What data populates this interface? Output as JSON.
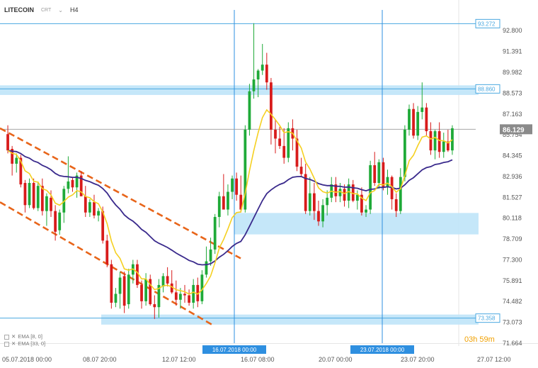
{
  "header": {
    "symbol": "LITECOIN",
    "type": "CRT",
    "timeframe": "H4"
  },
  "legend": [
    {
      "label": "EMA [8, 0]"
    },
    {
      "label": "EMA [33, 0]"
    }
  ],
  "timer": {
    "hours": "03h",
    "minutes": "59m"
  },
  "colors": {
    "up": "#1faa38",
    "down": "#d81b1b",
    "ema_fast": "#f5d021",
    "ema_slow": "#3a2a8c",
    "channel": "#e8651a",
    "zone": "#bfe4f8",
    "zone_line": "#4aa8e0",
    "vline": "#2e8fe0",
    "current_tag": "#8a8a8a",
    "axis_text": "#555555"
  },
  "chart_data": {
    "type": "candlestick",
    "symbol": "LITECOIN",
    "timeframe": "H4",
    "ylim": [
      71.664,
      94.2
    ],
    "y_ticks": [
      "92.800",
      "91.391",
      "89.982",
      "88.573",
      "87.163",
      "85.754",
      "84.345",
      "82.936",
      "81.527",
      "80.118",
      "78.709",
      "77.300",
      "75.891",
      "74.482",
      "73.073",
      "71.664"
    ],
    "x_ticks": [
      "05.07.2018 00:00",
      "08.07 20:00",
      "12.07 12:00",
      "16.07 08:00",
      "20.07 00:00",
      "23.07 20:00",
      "27.07 12:00"
    ],
    "horizontal_levels": [
      {
        "label": "93.272",
        "value": 93.272
      },
      {
        "label": "88.860",
        "value": 88.86
      },
      {
        "label": "73.358",
        "value": 73.358
      }
    ],
    "current_price": {
      "label": "86.129",
      "value": 86.129
    },
    "zones": [
      {
        "from": 88.45,
        "to": 89.1
      },
      {
        "from": 79.02,
        "to": 80.47
      },
      {
        "from": 72.92,
        "to": 73.6
      }
    ],
    "vertical_markers": [
      {
        "label": "16.07.2018 00:00"
      },
      {
        "label": "23.07.2018 00:00"
      }
    ],
    "channel_top": [
      [
        0,
        86.2
      ],
      [
        82,
        77.4
      ]
    ],
    "channel_bottom": [
      [
        0,
        81.2
      ],
      [
        73,
        72.9
      ]
    ],
    "candles": [
      [
        85.8,
        86.4,
        84.5,
        84.7
      ],
      [
        84.8,
        85.0,
        83.0,
        83.8
      ],
      [
        83.8,
        84.5,
        83.2,
        84.2
      ],
      [
        84.2,
        84.4,
        82.2,
        82.4
      ],
      [
        82.5,
        82.7,
        80.5,
        81.0
      ],
      [
        81.0,
        82.8,
        80.8,
        82.5
      ],
      [
        82.5,
        82.8,
        80.7,
        80.8
      ],
      [
        80.8,
        82.6,
        80.6,
        82.3
      ],
      [
        82.3,
        82.8,
        80.3,
        80.6
      ],
      [
        80.6,
        81.8,
        79.6,
        81.6
      ],
      [
        81.5,
        82.0,
        80.2,
        80.6
      ],
      [
        80.6,
        81.0,
        78.6,
        79.2
      ],
      [
        79.3,
        80.7,
        79.0,
        80.5
      ],
      [
        80.5,
        82.3,
        79.8,
        82.1
      ],
      [
        82.1,
        84.3,
        81.8,
        82.6
      ],
      [
        82.7,
        82.9,
        81.9,
        82.2
      ],
      [
        82.2,
        83.2,
        81.5,
        83.0
      ],
      [
        83.0,
        83.3,
        81.6,
        81.6
      ],
      [
        81.6,
        82.3,
        80.2,
        80.5
      ],
      [
        80.5,
        81.4,
        80.2,
        81.2
      ],
      [
        81.2,
        81.7,
        80.1,
        80.3
      ],
      [
        80.3,
        80.8,
        79.9,
        80.6
      ],
      [
        80.6,
        80.9,
        78.4,
        78.6
      ],
      [
        78.6,
        79.0,
        76.8,
        77.0
      ],
      [
        77.0,
        77.3,
        74.0,
        74.4
      ],
      [
        74.4,
        75.4,
        74.1,
        75.0
      ],
      [
        75.0,
        76.5,
        74.0,
        76.1
      ],
      [
        76.2,
        76.5,
        73.7,
        74.2
      ],
      [
        74.3,
        76.7,
        74.0,
        76.3
      ],
      [
        76.3,
        77.3,
        75.7,
        77.0
      ],
      [
        77.0,
        77.3,
        75.4,
        75.6
      ],
      [
        75.6,
        75.9,
        74.0,
        74.5
      ],
      [
        74.5,
        76.4,
        74.2,
        76.0
      ],
      [
        76.0,
        76.3,
        74.2,
        74.3
      ],
      [
        74.3,
        74.9,
        73.3,
        74.1
      ],
      [
        74.1,
        76.0,
        73.4,
        75.6
      ],
      [
        75.5,
        76.4,
        75.1,
        76.2
      ],
      [
        76.2,
        76.8,
        75.5,
        75.7
      ],
      [
        75.7,
        76.6,
        75.0,
        75.1
      ],
      [
        75.1,
        75.9,
        74.2,
        74.6
      ],
      [
        74.6,
        75.4,
        74.0,
        75.0
      ],
      [
        75.0,
        75.6,
        74.4,
        74.9
      ],
      [
        74.9,
        75.3,
        74.2,
        74.4
      ],
      [
        74.4,
        76.0,
        74.0,
        75.6
      ],
      [
        75.6,
        76.1,
        74.1,
        74.5
      ],
      [
        74.5,
        76.6,
        74.3,
        76.3
      ],
      [
        76.3,
        78.2,
        76.1,
        77.2
      ],
      [
        77.2,
        78.8,
        76.9,
        78.0
      ],
      [
        78.0,
        80.4,
        77.7,
        80.2
      ],
      [
        80.2,
        81.9,
        79.5,
        81.6
      ],
      [
        81.6,
        83.1,
        80.9,
        80.7
      ],
      [
        80.7,
        82.4,
        80.3,
        81.9
      ],
      [
        81.9,
        83.0,
        81.4,
        82.8
      ],
      [
        82.8,
        83.2,
        81.3,
        81.7
      ],
      [
        81.7,
        83.0,
        80.5,
        80.7
      ],
      [
        80.7,
        86.4,
        80.5,
        86.1
      ],
      [
        86.1,
        89.2,
        85.7,
        88.7
      ],
      [
        88.7,
        93.3,
        88.2,
        89.5
      ],
      [
        89.5,
        90.2,
        88.3,
        90.1
      ],
      [
        90.1,
        91.9,
        89.8,
        90.5
      ],
      [
        90.5,
        91.3,
        88.8,
        89.3
      ],
      [
        89.3,
        89.6,
        85.1,
        86.1
      ],
      [
        86.1,
        86.8,
        84.5,
        85.5
      ],
      [
        85.5,
        86.3,
        84.8,
        85.0
      ],
      [
        85.0,
        86.2,
        83.8,
        84.2
      ],
      [
        84.2,
        86.6,
        83.9,
        86.2
      ],
      [
        86.2,
        86.8,
        84.7,
        85.5
      ],
      [
        85.5,
        86.1,
        83.3,
        83.6
      ],
      [
        83.6,
        84.2,
        82.9,
        83.1
      ],
      [
        83.1,
        83.8,
        80.4,
        80.6
      ],
      [
        80.6,
        82.9,
        80.3,
        81.8
      ],
      [
        81.8,
        82.5,
        80.0,
        80.6
      ],
      [
        80.6,
        81.3,
        79.6,
        79.9
      ],
      [
        79.9,
        81.4,
        79.5,
        81.0
      ],
      [
        81.0,
        82.0,
        80.3,
        81.5
      ],
      [
        81.5,
        82.9,
        81.2,
        82.4
      ],
      [
        82.4,
        82.9,
        81.2,
        81.6
      ],
      [
        81.6,
        82.5,
        81.2,
        82.1
      ],
      [
        82.1,
        82.4,
        80.9,
        81.3
      ],
      [
        81.3,
        82.8,
        80.8,
        82.4
      ],
      [
        82.4,
        82.7,
        81.2,
        81.3
      ],
      [
        81.3,
        82.0,
        80.7,
        81.7
      ],
      [
        81.7,
        82.2,
        80.3,
        80.5
      ],
      [
        80.5,
        81.0,
        80.2,
        80.7
      ],
      [
        80.7,
        84.0,
        80.4,
        83.7
      ],
      [
        83.7,
        84.6,
        82.3,
        82.5
      ],
      [
        82.5,
        84.1,
        82.1,
        83.9
      ],
      [
        83.9,
        84.2,
        82.0,
        82.2
      ],
      [
        82.2,
        83.4,
        81.7,
        82.9
      ],
      [
        82.9,
        83.0,
        80.7,
        81.4
      ],
      [
        81.4,
        81.8,
        80.2,
        80.6
      ],
      [
        80.6,
        83.5,
        80.4,
        82.9
      ],
      [
        82.9,
        86.4,
        82.6,
        86.1
      ],
      [
        86.1,
        87.8,
        85.7,
        87.5
      ],
      [
        87.5,
        87.9,
        85.5,
        85.7
      ],
      [
        85.7,
        87.7,
        85.4,
        87.3
      ],
      [
        87.3,
        89.3,
        86.8,
        87.6
      ],
      [
        87.6,
        87.9,
        85.7,
        86.0
      ],
      [
        86.0,
        86.6,
        84.4,
        84.7
      ],
      [
        84.7,
        86.1,
        84.1,
        86.0
      ],
      [
        86.0,
        86.6,
        84.2,
        84.6
      ],
      [
        84.6,
        85.9,
        84.2,
        85.3
      ],
      [
        85.3,
        86.1,
        84.6,
        84.7
      ],
      [
        84.7,
        86.4,
        84.4,
        86.2
      ]
    ]
  }
}
